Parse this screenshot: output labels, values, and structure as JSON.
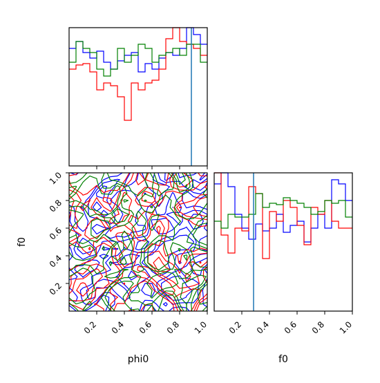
{
  "chart_data": [
    {
      "id": "hist_phi0",
      "type": "step-histogram",
      "xlim": [
        0,
        1
      ],
      "bins": 20,
      "series": [
        {
          "color": "#0000ff",
          "values": [
            0.85,
            0.9,
            0.82,
            0.78,
            0.83,
            0.75,
            0.7,
            0.76,
            0.8,
            0.82,
            0.68,
            0.74,
            0.7,
            0.78,
            0.82,
            0.8,
            0.85,
            1.0,
            0.95,
            0.88
          ]
        },
        {
          "color": "#ff0000",
          "values": [
            0.7,
            0.73,
            0.74,
            0.68,
            0.55,
            0.6,
            0.58,
            0.5,
            0.33,
            0.6,
            0.55,
            0.6,
            0.62,
            0.7,
            0.92,
            1.0,
            0.9,
            0.88,
            0.85,
            0.8
          ]
        },
        {
          "color": "#008000",
          "values": [
            0.75,
            0.9,
            0.85,
            0.82,
            0.7,
            0.65,
            0.7,
            0.85,
            0.75,
            0.8,
            0.88,
            0.85,
            0.75,
            0.8,
            0.82,
            0.85,
            0.8,
            0.88,
            0.88,
            0.75
          ]
        }
      ],
      "truth": 0.885,
      "truth_color": "#1f77b4",
      "xticks": []
    },
    {
      "id": "contour_phi0_f0",
      "type": "contour",
      "xlim": [
        0,
        1
      ],
      "ylim": [
        0,
        1
      ],
      "xlabel": "phi0",
      "ylabel": "f0",
      "xticks": [
        "0.2",
        "0.4",
        "0.6",
        "0.8",
        "1.0"
      ],
      "yticks": [
        "0.2",
        "0.4",
        "0.6",
        "0.8",
        "1.0"
      ],
      "series": [
        {
          "color": "#0000ff"
        },
        {
          "color": "#ff0000"
        },
        {
          "color": "#008000"
        }
      ]
    },
    {
      "id": "hist_f0",
      "type": "step-histogram",
      "xlim": [
        0,
        1
      ],
      "bins": 20,
      "xlabel": "f0",
      "xticks": [
        "0.2",
        "0.4",
        "0.6",
        "0.8",
        "1.0"
      ],
      "series": [
        {
          "color": "#0000ff",
          "values": [
            0.92,
            1.0,
            0.9,
            0.7,
            0.6,
            0.52,
            0.63,
            0.58,
            0.6,
            0.7,
            0.57,
            0.62,
            0.65,
            0.5,
            0.6,
            0.7,
            0.6,
            0.95,
            0.92,
            0.8
          ]
        },
        {
          "color": "#ff0000",
          "values": [
            1.0,
            0.55,
            0.42,
            0.6,
            0.58,
            0.9,
            0.85,
            0.38,
            0.72,
            0.65,
            0.8,
            0.75,
            0.62,
            0.48,
            0.75,
            0.7,
            0.8,
            0.65,
            0.6,
            0.6
          ]
        },
        {
          "color": "#008000",
          "values": [
            0.65,
            0.6,
            0.7,
            0.68,
            0.68,
            0.7,
            0.85,
            0.75,
            0.78,
            0.77,
            0.82,
            0.8,
            0.78,
            0.75,
            0.7,
            0.72,
            0.8,
            0.78,
            0.8,
            0.68
          ]
        }
      ],
      "truth": 0.285,
      "truth_color": "#1f77b4"
    }
  ]
}
